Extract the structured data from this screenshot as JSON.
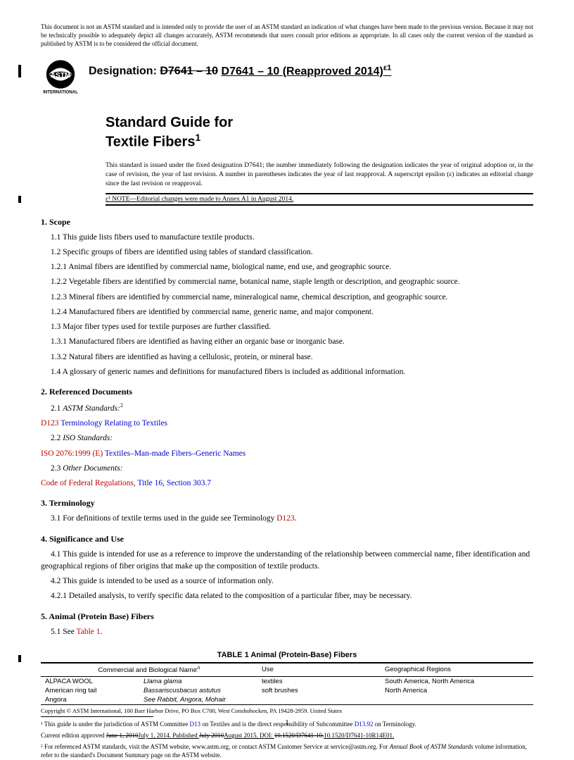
{
  "disclaimer": "This document is not an ASTM standard and is intended only to provide the user of an ASTM standard an indication of what changes have been made to the previous version. Because it may not be technically possible to adequately depict all changes accurately, ASTM recommends that users consult prior editions as appropriate. In all cases only the current version of the standard as published by ASTM is to be considered the official document.",
  "designation_label": "Designation:",
  "designation_old": "D7641 – 10",
  "designation_new": "D7641 – 10 (Reapproved 2014)",
  "designation_eps": "ε1",
  "title_line1": "Standard Guide for",
  "title_line2": "Textile Fibers",
  "title_sup": "1",
  "issuance": "This standard is issued under the fixed designation D7641; the number immediately following the designation indicates the year of original adoption or, in the case of revision, the year of last revision. A number in parentheses indicates the year of last reapproval. A superscript epsilon (ε) indicates an editorial change since the last revision or reapproval.",
  "eps_note": "ε¹ NOTE—Editorial changes were made to Annex A1 in August 2014.",
  "s1": {
    "head": "1. Scope",
    "p1": "1.1 This guide lists fibers used to manufacture textile products.",
    "p2": "1.2 Specific groups of fibers are identified using tables of standard classification.",
    "p3": "1.2.1 Animal fibers are identified by commercial name, biological name, end use, and geographic source.",
    "p4": "1.2.2 Vegetable fibers are identified by commercial name, botanical name, staple length or description, and geographic source.",
    "p5": "1.2.3 Mineral fibers are identified by commercial name, mineralogical name, chemical description, and geographic source.",
    "p6": "1.2.4 Manufactured fibers are identified by commercial name, generic name, and major component.",
    "p7": "1.3 Major fiber types used for textile purposes are further classified.",
    "p8": "1.3.1 Manufactured fibers are identified as having either an organic base or inorganic base.",
    "p9": "1.3.2 Natural fibers are identified as having a cellulosic, protein, or mineral base.",
    "p10": "1.4 A glossary of generic names and definitions for manufactured fibers is included as additional information."
  },
  "s2": {
    "head": "2. Referenced Documents",
    "p1a": "2.1 ",
    "p1b": "ASTM Standards:",
    "p1c": "2",
    "p2a": "D123",
    "p2b": " Terminology Relating to Textiles",
    "p3a": "2.2 ",
    "p3b": "ISO Standards:",
    "p4a": "ISO 2076:1999 (E)",
    "p4b": " Textiles–Man-made Fibers–Generic Names",
    "p5a": "2.3 ",
    "p5b": "Other Documents:",
    "p6a": "Code of Federal Regulations,",
    "p6b": " Title 16, Section 303.7"
  },
  "s3": {
    "head": "3. Terminology",
    "p1a": "3.1 For definitions of textile terms used in the guide see Terminology ",
    "p1b": "D123",
    "p1c": "."
  },
  "s4": {
    "head": "4. Significance and Use",
    "p1": "4.1 This guide is intended for use as a reference to improve the understanding of the relationship between commercial name, fiber identification and geographical regions of fiber origins that make up the composition of textile products.",
    "p2": "4.2 This guide is intended to be used as a source of information only.",
    "p3": "4.2.1 Detailed analysis, to verify specific data related to the composition of a particular fiber, may be necessary."
  },
  "s5": {
    "head": "5. Animal (Protein Base) Fibers",
    "p1a": "5.1 See ",
    "p1b": "Table 1",
    "p1c": "."
  },
  "table": {
    "title": "TABLE 1 Animal (Protein-Base) Fibers",
    "h1": "Commercial and Biological Name",
    "h1sup": "A",
    "h2": "Use",
    "h3": "Geographical Regions",
    "rows": [
      {
        "c1": "ALPACA WOOL",
        "c2": "Llama glama",
        "c3": "textiles",
        "c4": "South America, North America"
      },
      {
        "c1": "American ring tail",
        "c2": "Bassariscusbacus astutus",
        "c3": "soft brushes",
        "c4": "North America"
      },
      {
        "c1": "Angora",
        "c2": "See Rabbit, Angora, Mohair",
        "c3": "",
        "c4": ""
      }
    ]
  },
  "fn": {
    "l1a": "¹ This guide is under the jurisdiction of ASTM Committee ",
    "l1b": "D13",
    "l1c": " on Textiles and is the direct responsibility of Subcommittee ",
    "l1d": "D13.92",
    "l1e": " on Terminology.",
    "l2a": "Current edition approved ",
    "l2b": "June 1, 2010",
    "l2c": "July 1, 2014. Published ",
    "l2d": "July 2010",
    "l2e": "August 2015. DOI: ",
    "l2f": "10.1520/D7641-10.",
    "l2g": "10.1520/D7641-10R14E01.",
    "l3a": "² For referenced ASTM standards, visit the ASTM website, www.astm.org, or contact ASTM Customer Service at service@astm.org. For ",
    "l3b": "Annual Book of ASTM Standards",
    "l3c": " volume information, refer to the standard's Document Summary page on the ASTM website."
  },
  "copyright": "Copyright © ASTM International, 100 Barr Harbor Drive, PO Box C700, West Conshohocken, PA 19428-2959. United States",
  "page_num": "1"
}
